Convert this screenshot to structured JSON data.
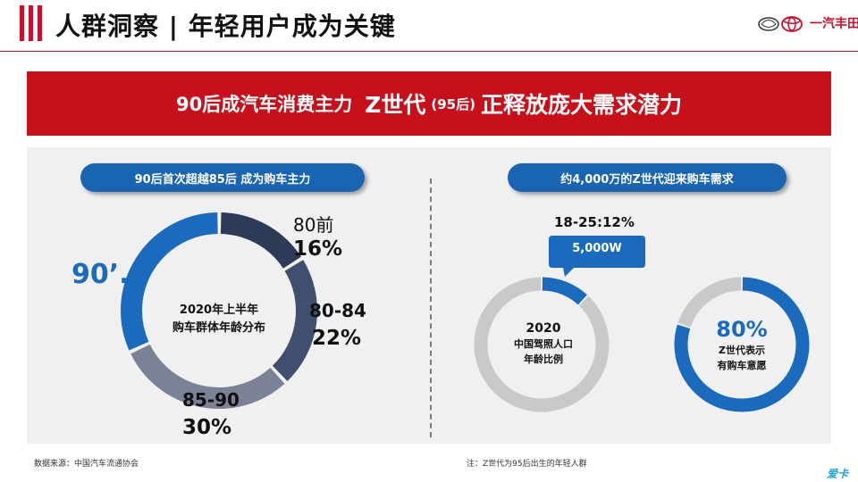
{
  "header": {
    "title": "人群洞察 | 年轻用户成为关键",
    "logo_text": "一汽丰田"
  },
  "banner": {
    "part1": "90后成汽车消费主力",
    "part2": "Z世代",
    "part3": "(95后)",
    "part4": "正释放庞大需求潜力"
  },
  "left": {
    "pill": "90后首次超越85后 成为购车主力",
    "center_line1": "2020年上半年",
    "center_line2": "购车群体年龄分布",
    "label_90": "90’...",
    "label_80_name": "80前",
    "label_80_pct": "16%",
    "label_8084_name": "80-84",
    "label_8084_pct": "22%",
    "label_8590_name": "85-90",
    "label_8590_pct": "30%"
  },
  "right": {
    "pill": "约4,000万的Z世代迎来购车需求",
    "callout_label": "18-25:12%",
    "callout_value": "5,000W",
    "d1_year": "2020",
    "d1_line1": "中国驾照人口",
    "d1_line2": "年龄比例",
    "d2_pct": "80%",
    "d2_line1": "Z世代表示",
    "d2_line2": "有购车意愿"
  },
  "footer": {
    "source": "数据来源：中国汽车流通协会",
    "note": "注：Z世代为95后出生的年轻人群",
    "watermark": "爱卡"
  },
  "chart_data": [
    {
      "type": "pie",
      "title": "2020年上半年 购车群体年龄分布",
      "categories": [
        "90’...",
        "80前",
        "80-84",
        "85-90"
      ],
      "values": [
        32,
        16,
        22,
        30
      ],
      "colors": [
        "#1a6bbd",
        "#2d3b57",
        "#3f4f6d",
        "#7b8295"
      ]
    },
    {
      "type": "pie",
      "title": "2020 中国驾照人口年龄比例",
      "categories": [
        "18-25",
        ""
      ],
      "values": [
        12,
        88
      ],
      "colors": [
        "#1a6bbd",
        "#c9c9c9"
      ]
    },
    {
      "type": "pie",
      "title": "Z世代表示有购车意愿",
      "categories": [
        "",
        ""
      ],
      "values": [
        80,
        20
      ],
      "colors": [
        "#1a6bbd",
        "#c9c9c9"
      ]
    }
  ]
}
